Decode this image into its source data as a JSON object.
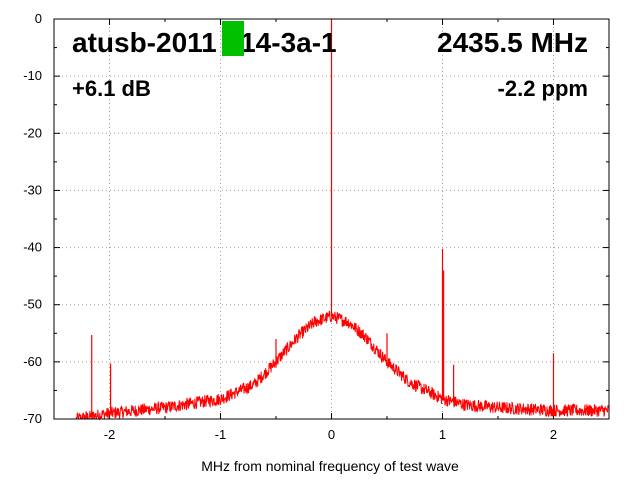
{
  "chart_data": {
    "type": "line",
    "title": "",
    "xlabel": "MHz from nominal frequency of test wave",
    "ylabel": "",
    "xlim": [
      -2.5,
      2.5
    ],
    "ylim": [
      -70,
      0
    ],
    "x_ticks": [
      -2,
      -1,
      0,
      1,
      2
    ],
    "y_ticks": [
      0,
      -10,
      -20,
      -30,
      -40,
      -50,
      -60,
      -70
    ],
    "x_tick_labels": [
      "-2",
      "-1",
      "0",
      "1",
      "2"
    ],
    "y_tick_labels": [
      "0",
      "-10",
      "-20",
      "-30",
      "-40",
      "-50",
      "-60",
      "-70"
    ],
    "grid": true,
    "series_color": "#ff0000",
    "marker_color": "#00c000",
    "noise_floor_envelope": {
      "x": [
        -2.3,
        -2.0,
        -1.5,
        -1.0,
        -0.7,
        -0.5,
        -0.3,
        -0.15,
        0.0,
        0.15,
        0.3,
        0.5,
        0.7,
        1.0,
        1.2,
        1.5,
        2.0,
        2.5
      ],
      "y": [
        -70,
        -69,
        -68,
        -66.5,
        -64,
        -60,
        -55.5,
        -53,
        -52,
        -53,
        -55.5,
        -60,
        -63.5,
        -66.5,
        -67.5,
        -68,
        -68.5,
        -68.5
      ]
    },
    "spurs": [
      {
        "x": -2.16,
        "y": -55.3
      },
      {
        "x": -1.99,
        "y": -60.3
      },
      {
        "x": -0.5,
        "y": -56
      },
      {
        "x": 0.0,
        "y": 0
      },
      {
        "x": 0.5,
        "y": -55
      },
      {
        "x": 1.0,
        "y": -40.2
      },
      {
        "x": 1.01,
        "y": -44
      },
      {
        "x": 1.1,
        "y": -60.5
      },
      {
        "x": 2.0,
        "y": -58.5
      }
    ]
  },
  "overlay": {
    "device_id": "atusb-2011 214-3a-1",
    "frequency": "2435.5 MHz",
    "gain": "+6.1 dB",
    "offset": "-2.2 ppm"
  }
}
